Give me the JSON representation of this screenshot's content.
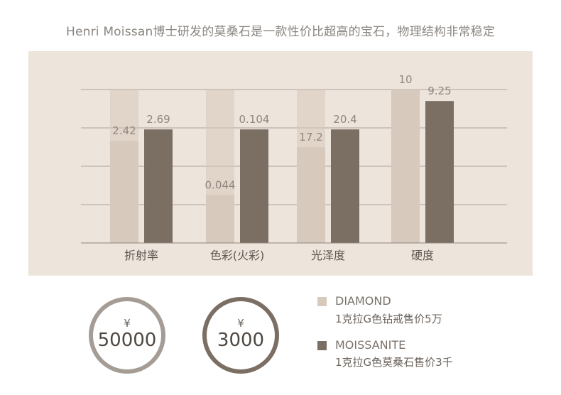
{
  "headline": "Henri Moissan博士研发的莫桑石是一款性价比超高的宝石，物理结构非常稳定",
  "colors": {
    "panel_bg": "#ede4dc",
    "diamond": "#d7c9bb",
    "moissanite": "#7b6e63",
    "gridline": "#8f8780",
    "value_text": "#8f8780",
    "category_text": "#5f5852"
  },
  "chart_data": {
    "type": "bar",
    "title": "",
    "categories": [
      "折射率",
      "色彩(火彩)",
      "光泽度",
      "硬度"
    ],
    "series": [
      {
        "name": "DIAMOND",
        "values": [
          2.42,
          0.044,
          17.2,
          10
        ]
      },
      {
        "name": "MOISSANITE",
        "values": [
          2.69,
          0.104,
          20.4,
          9.25
        ]
      }
    ],
    "value_labels": [
      [
        "2.42",
        "0.044",
        "17.2",
        "10"
      ],
      [
        "2.69",
        "0.104",
        "20.4",
        "9.25"
      ]
    ],
    "independent_scale_per_category": true,
    "grid": true,
    "legend_position": "below-right"
  },
  "prices": {
    "currency": "¥",
    "diamond_price": "50000",
    "moissanite_price": "3000"
  },
  "legend": {
    "diamond_name": "DIAMOND",
    "diamond_desc": "1克拉G色钻戒售价5万",
    "moissanite_name": "MOISSANITE",
    "moissanite_desc": "1克拉G色莫桑石售价3千"
  }
}
